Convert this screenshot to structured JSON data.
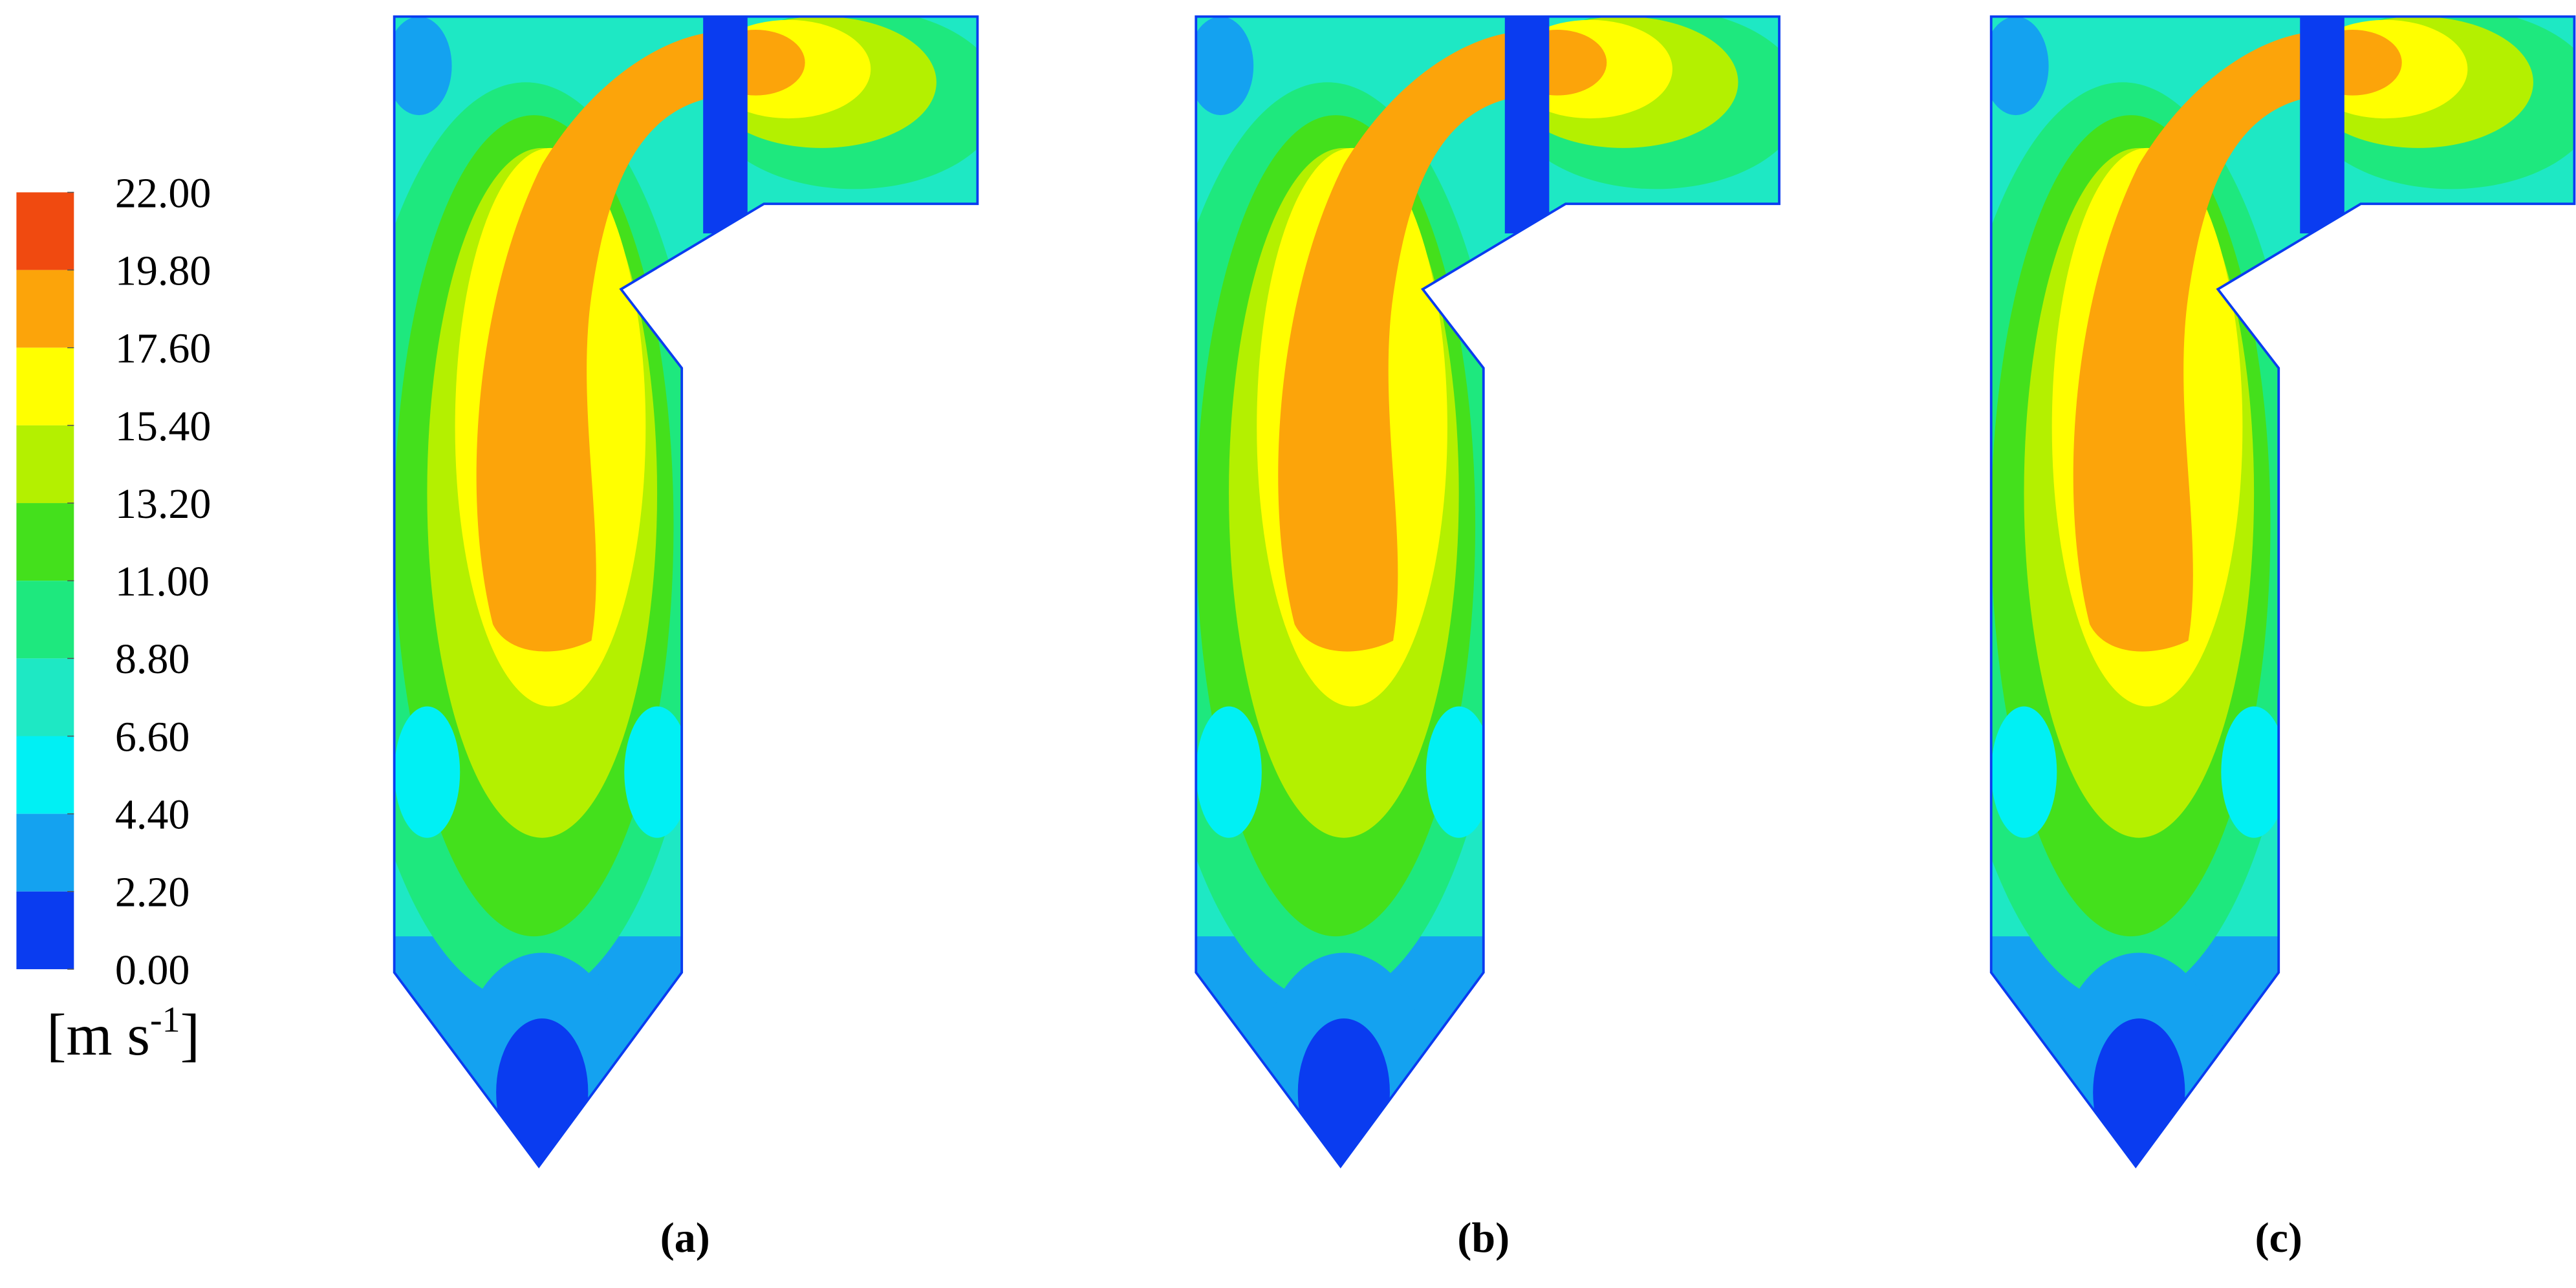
{
  "colorbar": {
    "ticks": [
      {
        "value": 22,
        "label": "22.00"
      },
      {
        "value": 19.8,
        "label": "19.80"
      },
      {
        "value": 17.6,
        "label": "17.60"
      },
      {
        "value": 15.4,
        "label": "15.40"
      },
      {
        "value": 13.2,
        "label": "13.20"
      },
      {
        "value": 11,
        "label": "11.00"
      },
      {
        "value": 8.8,
        "label": "8.80"
      },
      {
        "value": 6.6,
        "label": "6.60"
      },
      {
        "value": 4.4,
        "label": "4.40"
      },
      {
        "value": 2.2,
        "label": "2.20"
      },
      {
        "value": 0,
        "label": "0.00"
      }
    ],
    "colors": [
      "#f04a10",
      "#fca40a",
      "#ffff00",
      "#b4f000",
      "#44e01c",
      "#1ee87e",
      "#1ee8c4",
      "#00f0f4",
      "#14a2f0",
      "#0a3cf0"
    ],
    "unit_base": "[m s",
    "unit_exponent": "-1",
    "unit_close": "]"
  },
  "panels": [
    {
      "label": "(a)"
    },
    {
      "label": "(b)"
    },
    {
      "label": "(c)"
    }
  ]
}
